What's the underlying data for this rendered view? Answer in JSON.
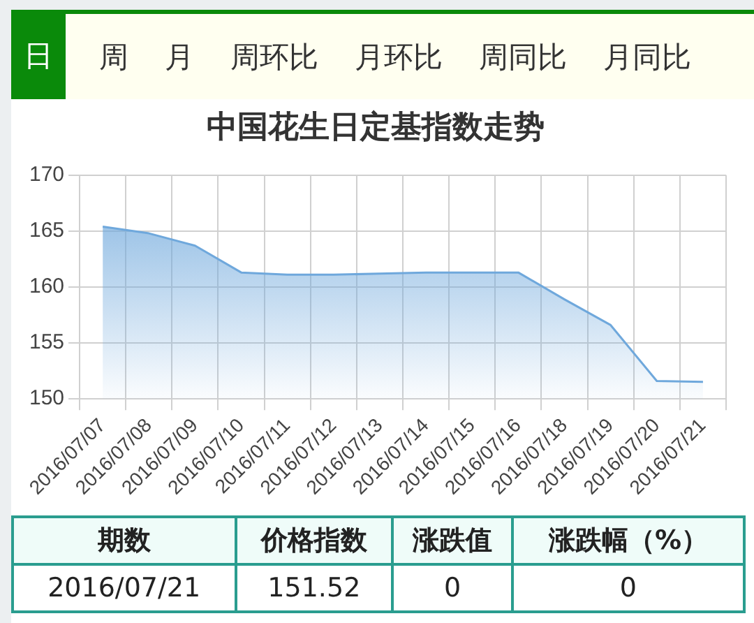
{
  "chart_data": {
    "type": "area",
    "title": "中国花生日定基指数走势",
    "categories": [
      "2016/07/07",
      "2016/07/08",
      "2016/07/09",
      "2016/07/10",
      "2016/07/11",
      "2016/07/12",
      "2016/07/13",
      "2016/07/14",
      "2016/07/15",
      "2016/07/16",
      "2016/07/18",
      "2016/07/19",
      "2016/07/20",
      "2016/07/21"
    ],
    "values": [
      165.4,
      164.8,
      163.7,
      161.3,
      161.1,
      161.1,
      161.2,
      161.3,
      161.3,
      161.3,
      158.9,
      156.6,
      151.6,
      151.52
    ],
    "color": "#6fa8dc",
    "ylim": [
      150,
      170
    ],
    "yticks": [
      150,
      155,
      160,
      165,
      170
    ],
    "grid": true,
    "legend": false,
    "marker": "none",
    "line_style": "solid",
    "annotations": [
      "日",
      "周",
      "月",
      "周环比",
      "月环比",
      "周同比",
      "月同比",
      "期数",
      "价格指数",
      "涨跌值",
      "涨跌幅（%）",
      "2016/07/21",
      "151.52",
      "0",
      "0"
    ]
  }
}
